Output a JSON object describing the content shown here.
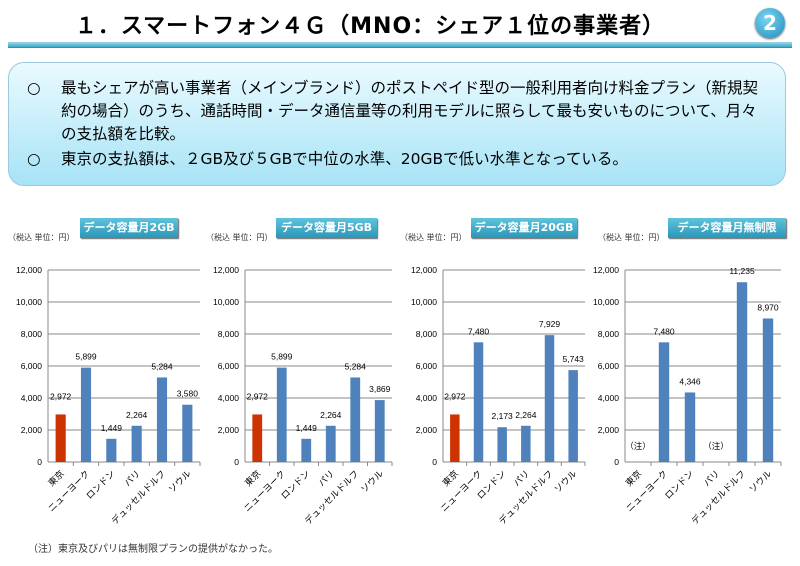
{
  "header": {
    "title": "１．スマートフォン４Ｇ（MNO：シェア１位の事業者）",
    "page_badge": "2"
  },
  "summary": {
    "bullet": "○",
    "points": [
      "最もシェアが高い事業者（メインブランド）のポストペイド型の一般利用者向け料金プラン（新規契約の場合）のうち、通話時間・データ通信量等の利用モデルに照らして最も安いものについて、月々の支払額を比較。",
      "東京の支払額は、２GB及び５GBで中位の水準、20GBで低い水準となっている。"
    ]
  },
  "unit_label": "（税込  単位：円）",
  "footnote": "（注）東京及びパリは無制限プランの提供がなかった。",
  "colors": {
    "tokyo": "#cc3300",
    "other": "#4f81bd"
  },
  "chart_data": [
    {
      "type": "bar",
      "title": "データ容量月2GB",
      "categories": [
        "東京",
        "ニューヨーク",
        "ロンドン",
        "パリ",
        "デュッセルドルフ",
        "ソウル"
      ],
      "values": [
        2972,
        5899,
        1449,
        2264,
        5284,
        3580
      ],
      "data_labels": [
        "2,972",
        "5,899",
        "1,449",
        "2,264",
        "5,284",
        "3,580"
      ],
      "yticks": [
        "0",
        "2,000",
        "4,000",
        "6,000",
        "8,000",
        "10,000",
        "12,000"
      ],
      "ylim": [
        0,
        12000
      ],
      "grid": true
    },
    {
      "type": "bar",
      "title": "データ容量月5GB",
      "categories": [
        "東京",
        "ニューヨーク",
        "ロンドン",
        "パリ",
        "デュッセルドルフ",
        "ソウル"
      ],
      "values": [
        2972,
        5899,
        1449,
        2264,
        5284,
        3869
      ],
      "data_labels": [
        "2,972",
        "5,899",
        "1,449",
        "2,264",
        "5,284",
        "3,869"
      ],
      "yticks": [
        "0",
        "2,000",
        "4,000",
        "6,000",
        "8,000",
        "10,000",
        "12,000"
      ],
      "ylim": [
        0,
        12000
      ],
      "grid": true
    },
    {
      "type": "bar",
      "title": "データ容量月20GB",
      "categories": [
        "東京",
        "ニューヨーク",
        "ロンドン",
        "パリ",
        "デュッセルドルフ",
        "ソウル"
      ],
      "values": [
        2972,
        7480,
        2173,
        2264,
        7929,
        5743
      ],
      "data_labels": [
        "2,972",
        "7,480",
        "2,173",
        "2,264",
        "7,929",
        "5,743"
      ],
      "yticks": [
        "0",
        "2,000",
        "4,000",
        "6,000",
        "8,000",
        "10,000",
        "12,000"
      ],
      "ylim": [
        0,
        12000
      ],
      "grid": true
    },
    {
      "type": "bar",
      "title": "データ容量月無制限",
      "categories": [
        "東京",
        "ニューヨーク",
        "ロンドン",
        "パリ",
        "デュッセルドルフ",
        "ソウル"
      ],
      "values": [
        null,
        7480,
        4346,
        null,
        11235,
        8970
      ],
      "data_labels": [
        "（注）",
        "7,480",
        "4,346",
        "（注）",
        "11,235",
        "8,970"
      ],
      "yticks": [
        "0",
        "2,000",
        "4,000",
        "6,000",
        "8,000",
        "10,000",
        "12,000"
      ],
      "ylim": [
        0,
        12000
      ],
      "grid": true
    }
  ]
}
